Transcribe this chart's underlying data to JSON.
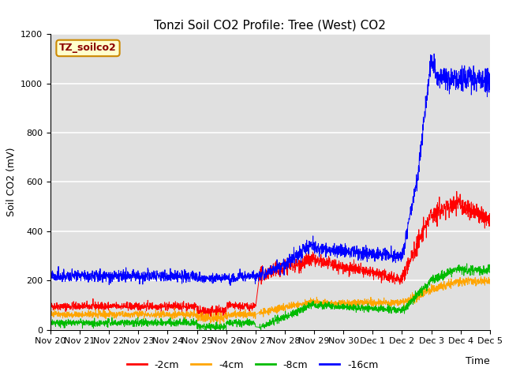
{
  "title": "Tonzi Soil CO2 Profile: Tree (West) CO2",
  "ylabel": "Soil CO2 (mV)",
  "xlabel": "Time",
  "watermark_text": "TZ_soilco2",
  "plot_bg_color": "#e0e0e0",
  "fig_bg_color": "#ffffff",
  "ylim": [
    0,
    1200
  ],
  "yticks": [
    0,
    200,
    400,
    600,
    800,
    1000,
    1200
  ],
  "tick_labels": [
    "Nov 20",
    "Nov 21",
    "Nov 22",
    "Nov 23",
    "Nov 24",
    "Nov 25",
    "Nov 26",
    "Nov 27",
    "Nov 28",
    "Nov 29",
    "Nov 30",
    "Dec 1",
    "Dec 2",
    "Dec 3",
    "Dec 4",
    "Dec 5"
  ],
  "legend_labels": [
    "-2cm",
    "-4cm",
    "-8cm",
    "-16cm"
  ],
  "legend_colors": [
    "#ff0000",
    "#ffa500",
    "#00bb00",
    "#0000ff"
  ],
  "line_colors": {
    "2cm": "#ff0000",
    "4cm": "#ffa500",
    "8cm": "#00bb00",
    "16cm": "#0000ff"
  },
  "title_fontsize": 11,
  "axis_label_fontsize": 9,
  "tick_fontsize": 8,
  "legend_fontsize": 9,
  "watermark_fontsize": 9,
  "line_width": 0.7,
  "grid_color": "#ffffff",
  "grid_lw": 1.2
}
